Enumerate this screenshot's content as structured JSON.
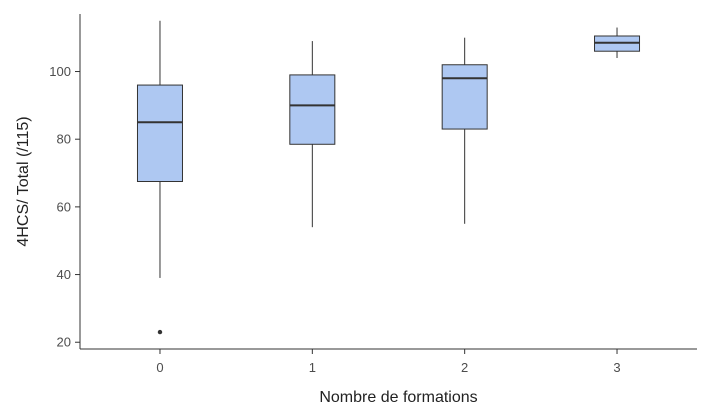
{
  "chart_data": {
    "type": "boxplot",
    "title": "",
    "xlabel": "Nombre de formations",
    "ylabel": "4HCS/ Total (/115)",
    "categories": [
      "0",
      "1",
      "2",
      "3"
    ],
    "ylim": [
      18,
      117
    ],
    "yticks": [
      20,
      40,
      60,
      80,
      100
    ],
    "grid": false,
    "legend": "none",
    "box_fill": "#aec8f2",
    "line_color": "#333333",
    "boxes": [
      {
        "category": "0",
        "min": 39,
        "q1": 67.5,
        "median": 85,
        "q3": 96,
        "max": 115,
        "outliers": [
          23
        ]
      },
      {
        "category": "1",
        "min": 54,
        "q1": 78.5,
        "median": 90,
        "q3": 99,
        "max": 109,
        "outliers": []
      },
      {
        "category": "2",
        "min": 55,
        "q1": 83,
        "median": 98,
        "q3": 102,
        "max": 110,
        "outliers": []
      },
      {
        "category": "3",
        "min": 104,
        "q1": 106,
        "median": 108.5,
        "q3": 110.5,
        "max": 113,
        "outliers": []
      }
    ]
  }
}
